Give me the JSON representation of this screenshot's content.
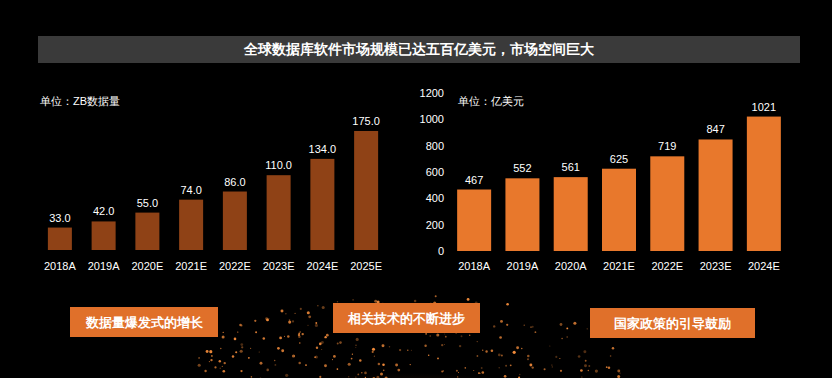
{
  "title": "全球数据库软件市场规模已达五百亿美元，市场空间巨大",
  "chart_data": [
    {
      "type": "bar",
      "ylabel": "单位：ZB数据量",
      "categories": [
        "2018A",
        "2019A",
        "2020E",
        "2021E",
        "2022E",
        "2023E",
        "2024E",
        "2025E"
      ],
      "values": [
        33.0,
        42.0,
        55.0,
        74.0,
        86.0,
        110.0,
        134.0,
        175.0
      ],
      "value_labels": [
        "33.0",
        "42.0",
        "55.0",
        "74.0",
        "86.0",
        "110.0",
        "134.0",
        "175.0"
      ],
      "color": "#8f4216",
      "ylim": [
        0,
        175
      ],
      "tick_labels": "x",
      "data_labels": true,
      "grid": false
    },
    {
      "type": "bar",
      "ylabel": "单位：亿美元",
      "categories": [
        "2018A",
        "2019A",
        "2020A",
        "2021E",
        "2022E",
        "2023E",
        "2024E"
      ],
      "values": [
        467,
        552,
        561,
        625,
        719,
        847,
        1021
      ],
      "color": "#e8782c",
      "ylim": [
        0,
        1200
      ],
      "yticks": [
        0,
        200,
        400,
        600,
        800,
        1000,
        1200
      ],
      "data_labels": true,
      "grid": false
    }
  ],
  "callouts": [
    "数据量爆发式的增长",
    "相关技术的不断进步",
    "国家政策的引导鼓励"
  ]
}
